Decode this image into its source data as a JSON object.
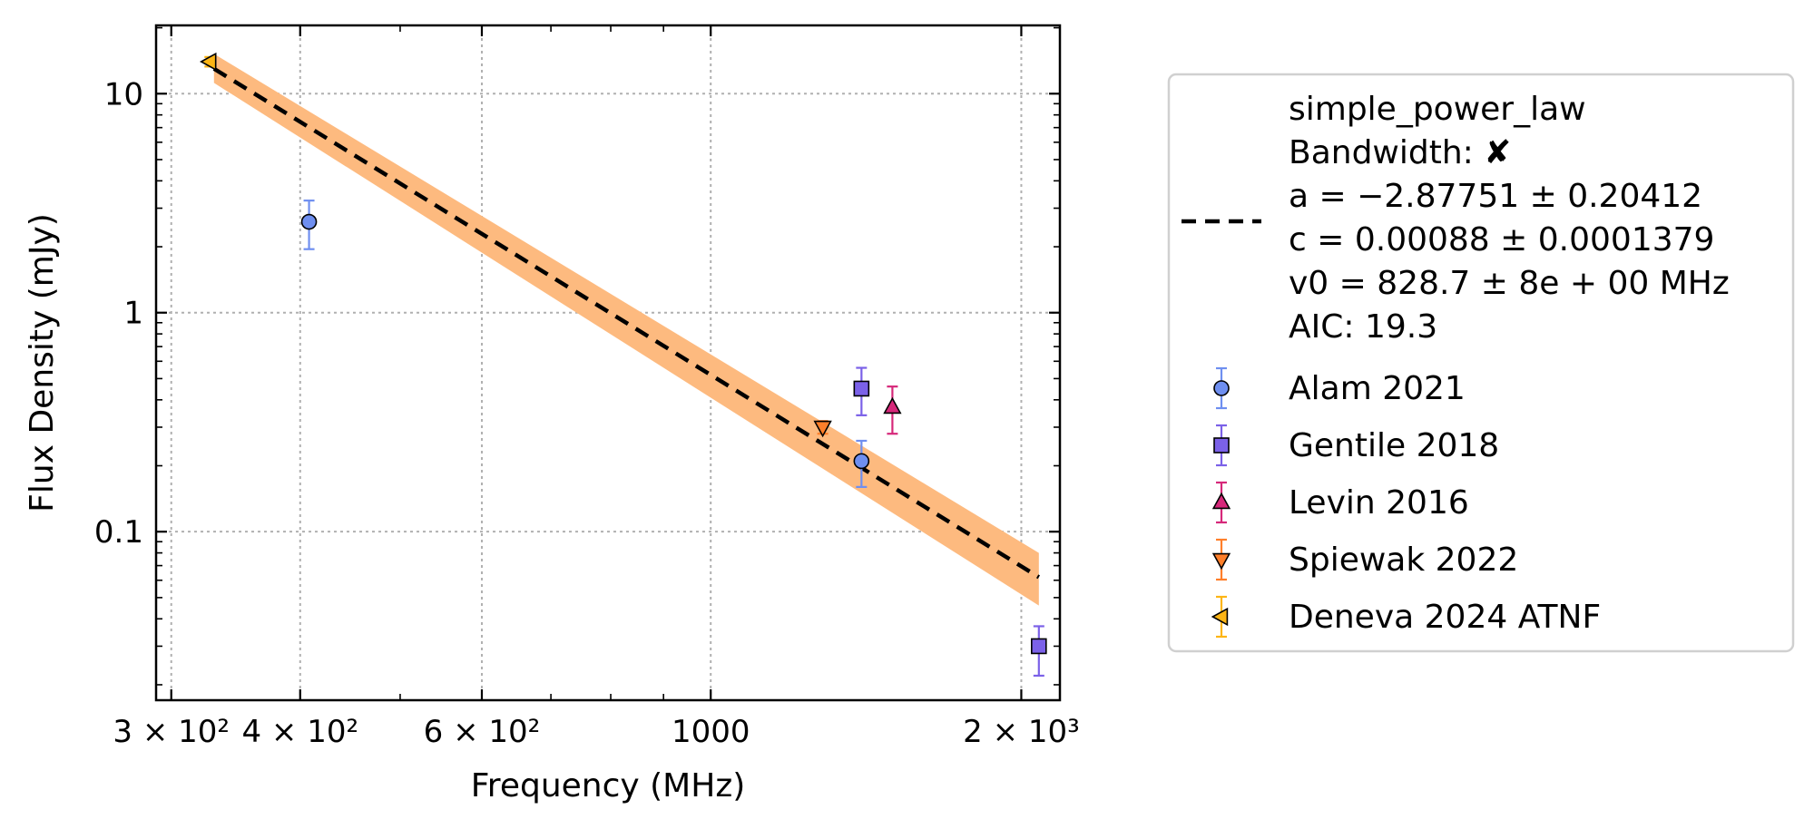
{
  "chart_data": {
    "type": "scatter",
    "xlabel": "Frequency (MHz)",
    "ylabel": "Flux Density (mJy)",
    "xscale": "log",
    "yscale": "log",
    "xlim": [
      290,
      2180
    ],
    "ylim": [
      0.017,
      20.5
    ],
    "grid": true,
    "legend_position": "outside-right",
    "x_ticks": [
      {
        "value": 300,
        "label": "3 × 10²"
      },
      {
        "value": 400,
        "label": "4 × 10²"
      },
      {
        "value": 600,
        "label": "6 × 10²"
      },
      {
        "value": 1000,
        "label": "1000"
      },
      {
        "value": 2000,
        "label": "2 × 10³"
      }
    ],
    "y_ticks": [
      {
        "value": 0.1,
        "label": "0.1"
      },
      {
        "value": 1,
        "label": "1"
      },
      {
        "value": 10,
        "label": "10"
      }
    ],
    "fit": {
      "line": {
        "x_start": 330,
        "y_start": 13.0,
        "x_end": 2080,
        "y_end": 0.062
      },
      "band_lower": {
        "x_start": 330,
        "y_start": 11.2,
        "x_end": 2080,
        "y_end": 0.046
      },
      "band_upper": {
        "x_start": 330,
        "y_start": 15.2,
        "x_end": 2080,
        "y_end": 0.08
      },
      "line_color": "#000000",
      "band_color": "#FDBA7F",
      "legend_lines": [
        "simple_power_law",
        "Bandwidth: ✘",
        "a = −2.87751 ± 0.20412",
        "c = 0.00088 ± 0.0001379",
        "v0 = 828.7 ± 8e + 00 MHz",
        "AIC: 19.3"
      ]
    },
    "series": [
      {
        "name": "Alam 2021",
        "marker": "circle",
        "color": "#6F8FF0",
        "err_color": "#6F8FF0",
        "points": [
          {
            "x": 408,
            "y": 2.6,
            "y_low": 1.95,
            "y_high": 3.25
          },
          {
            "x": 1400,
            "y": 0.21,
            "y_low": 0.16,
            "y_high": 0.26
          }
        ]
      },
      {
        "name": "Gentile 2018",
        "marker": "square",
        "color": "#7B61E8",
        "err_color": "#7B61E8",
        "points": [
          {
            "x": 1400,
            "y": 0.45,
            "y_low": 0.34,
            "y_high": 0.56
          },
          {
            "x": 2080,
            "y": 0.03,
            "y_low": 0.022,
            "y_high": 0.037
          }
        ]
      },
      {
        "name": "Levin 2016",
        "marker": "triangle-up",
        "color": "#D6287A",
        "err_color": "#D6287A",
        "points": [
          {
            "x": 1500,
            "y": 0.37,
            "y_low": 0.28,
            "y_high": 0.46
          }
        ]
      },
      {
        "name": "Spiewak 2022",
        "marker": "triangle-down",
        "color": "#FF7F2A",
        "err_color": "#FF7F2A",
        "points": [
          {
            "x": 1284,
            "y": 0.3,
            "y_low": 0.28,
            "y_high": 0.32
          }
        ]
      },
      {
        "name": "Deneva 2024 ATNF",
        "marker": "triangle-left",
        "color": "#FDB515",
        "err_color": "#FDB515",
        "points": [
          {
            "x": 327,
            "y": 14.0,
            "y_low": 13.3,
            "y_high": 14.7
          }
        ]
      }
    ]
  }
}
